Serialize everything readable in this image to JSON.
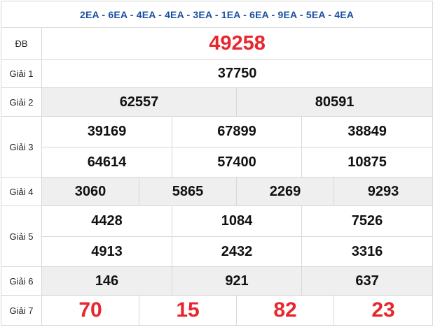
{
  "header": {
    "codes": "2EA - 6EA - 4EA - 4EA - 3EA - 1EA - 6EA - 9EA - 5EA - 4EA"
  },
  "prizes": {
    "db": {
      "label": "ĐB",
      "numbers": [
        "49258"
      ]
    },
    "g1": {
      "label": "Giải 1",
      "numbers": [
        "37750"
      ]
    },
    "g2": {
      "label": "Giải 2",
      "numbers": [
        "62557",
        "80591"
      ]
    },
    "g3": {
      "label": "Giải 3",
      "numbers": [
        "39169",
        "67899",
        "38849",
        "64614",
        "57400",
        "10875"
      ]
    },
    "g4": {
      "label": "Giải 4",
      "numbers": [
        "3060",
        "5865",
        "2269",
        "9293"
      ]
    },
    "g5": {
      "label": "Giải 5",
      "numbers": [
        "4428",
        "1084",
        "7526",
        "4913",
        "2432",
        "3316"
      ]
    },
    "g6": {
      "label": "Giải 6",
      "numbers": [
        "146",
        "921",
        "637"
      ]
    },
    "g7": {
      "label": "Giải 7",
      "numbers": [
        "70",
        "15",
        "82",
        "23"
      ]
    }
  },
  "colors": {
    "header_text": "#1a4fa0",
    "red_number": "#e8262d",
    "shaded_row": "#efefef",
    "border": "#d8d8d8"
  }
}
